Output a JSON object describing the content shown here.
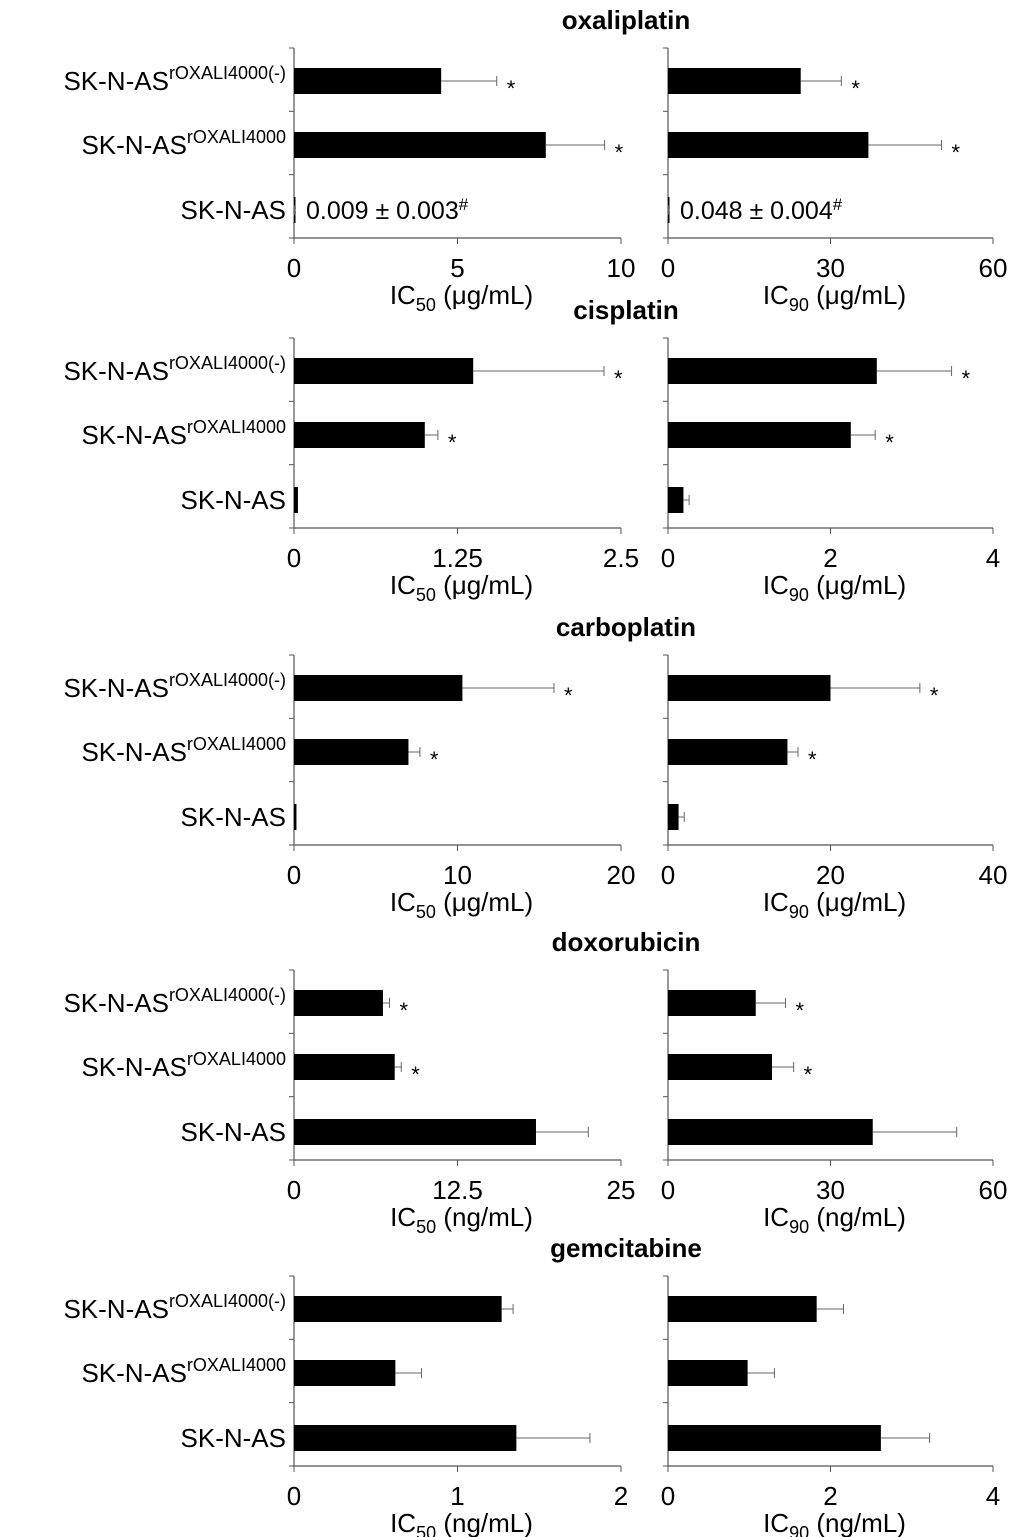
{
  "chart_data": [
    {
      "type": "bar",
      "title": "oxaliplatin",
      "categories": [
        "SK-N-AS^rOXALI^4000(-)",
        "SK-N-AS^rOXALI^4000",
        "SK-N-AS"
      ],
      "panels": [
        {
          "metric": "IC50",
          "unit": "(μg/mL)",
          "xlim": [
            0,
            10
          ],
          "ticks": [
            "0",
            "5",
            "10"
          ],
          "values": [
            4.5,
            7.7,
            0.009
          ],
          "errors": [
            1.7,
            1.8,
            0.003
          ],
          "significant": [
            true,
            true,
            false
          ],
          "annotation": "0.009 ± 0.003#"
        },
        {
          "metric": "IC90",
          "unit": "(μg/mL)",
          "xlim": [
            0,
            60
          ],
          "ticks": [
            "0",
            "30",
            "60"
          ],
          "values": [
            24.5,
            37.0,
            0.048
          ],
          "errors": [
            7.5,
            13.5,
            0.004
          ],
          "significant": [
            true,
            true,
            false
          ],
          "annotation": "0.048 ± 0.004#"
        }
      ]
    },
    {
      "type": "bar",
      "title": "cisplatin",
      "categories": [
        "SK-N-AS^rOXALI^4000(-)",
        "SK-N-AS^rOXALI^4000",
        "SK-N-AS"
      ],
      "panels": [
        {
          "metric": "IC50",
          "unit": "(μg/mL)",
          "xlim": [
            0,
            2.5
          ],
          "ticks": [
            "0",
            "1.25",
            "2.5"
          ],
          "values": [
            1.37,
            1.0,
            0.03
          ],
          "errors": [
            1.0,
            0.1,
            0.0
          ],
          "significant": [
            true,
            true,
            false
          ]
        },
        {
          "metric": "IC90",
          "unit": "(μg/mL)",
          "xlim": [
            0,
            4
          ],
          "ticks": [
            "0",
            "2",
            "4"
          ],
          "values": [
            2.57,
            2.25,
            0.19
          ],
          "errors": [
            0.92,
            0.3,
            0.07
          ],
          "significant": [
            true,
            true,
            false
          ]
        }
      ]
    },
    {
      "type": "bar",
      "title": "carboplatin",
      "categories": [
        "SK-N-AS^rOXALI^4000(-)",
        "SK-N-AS^rOXALI^4000",
        "SK-N-AS"
      ],
      "panels": [
        {
          "metric": "IC50",
          "unit": "(μg/mL)",
          "xlim": [
            0,
            20
          ],
          "ticks": [
            "0",
            "10",
            "20"
          ],
          "values": [
            10.3,
            7.0,
            0.15
          ],
          "errors": [
            5.6,
            0.7,
            0.0
          ],
          "significant": [
            true,
            true,
            false
          ]
        },
        {
          "metric": "IC90",
          "unit": "(μg/mL)",
          "xlim": [
            0,
            40
          ],
          "ticks": [
            "0",
            "20",
            "40"
          ],
          "values": [
            20.0,
            14.7,
            1.3
          ],
          "errors": [
            11.0,
            1.3,
            0.7
          ],
          "significant": [
            true,
            true,
            false
          ]
        }
      ]
    },
    {
      "type": "bar",
      "title": "doxorubicin",
      "categories": [
        "SK-N-AS^rOXALI^4000(-)",
        "SK-N-AS^rOXALI^4000",
        "SK-N-AS"
      ],
      "panels": [
        {
          "metric": "IC50",
          "unit": "(ng/mL)",
          "xlim": [
            0,
            25
          ],
          "ticks": [
            "0",
            "12.5",
            "25"
          ],
          "values": [
            6.8,
            7.7,
            18.5
          ],
          "errors": [
            0.5,
            0.5,
            4.0
          ],
          "significant": [
            true,
            true,
            false
          ]
        },
        {
          "metric": "IC90",
          "unit": "(ng/mL)",
          "xlim": [
            0,
            60
          ],
          "ticks": [
            "0",
            "30",
            "60"
          ],
          "values": [
            16.2,
            19.2,
            37.8
          ],
          "errors": [
            5.5,
            4.0,
            15.5
          ],
          "significant": [
            true,
            true,
            false
          ]
        }
      ]
    },
    {
      "type": "bar",
      "title": "gemcitabine",
      "categories": [
        "SK-N-AS^rOXALI^4000(-)",
        "SK-N-AS^rOXALI^4000",
        "SK-N-AS"
      ],
      "panels": [
        {
          "metric": "IC50",
          "unit": "(ng/mL)",
          "xlim": [
            0,
            2
          ],
          "ticks": [
            "0",
            "1",
            "2"
          ],
          "values": [
            1.27,
            0.62,
            1.36
          ],
          "errors": [
            0.07,
            0.16,
            0.45
          ],
          "significant": [
            false,
            false,
            false
          ]
        },
        {
          "metric": "IC90",
          "unit": "(ng/mL)",
          "xlim": [
            0,
            4
          ],
          "ticks": [
            "0",
            "2",
            "4"
          ],
          "values": [
            1.83,
            0.98,
            2.62
          ],
          "errors": [
            0.33,
            0.33,
            0.6
          ],
          "significant": [
            false,
            false,
            false
          ]
        }
      ]
    }
  ],
  "significance_marker": "*"
}
